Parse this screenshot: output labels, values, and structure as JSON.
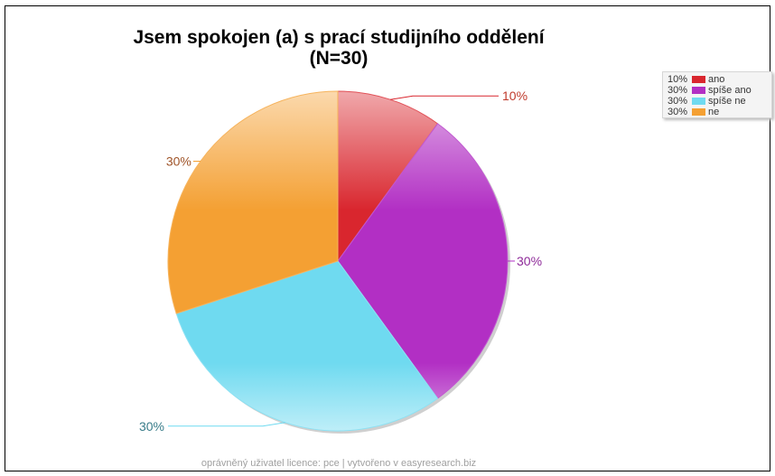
{
  "chart_data": {
    "type": "pie",
    "title_line1": "Jsem spokojen (a) s prací studijního oddělení",
    "title_line2": "(N=30)",
    "legend_position": "top-right",
    "slices": [
      {
        "label": "ano",
        "value": 10,
        "pct_label": "10%",
        "color": "#d9262e",
        "label_color": "#c0392b"
      },
      {
        "label": "spíše ano",
        "value": 30,
        "pct_label": "30%",
        "color": "#b22fc4",
        "label_color": "#8e2a99"
      },
      {
        "label": "spíše ne",
        "value": 30,
        "pct_label": "30%",
        "color": "#6fdaf0",
        "label_color": "#3a7d8a"
      },
      {
        "label": "ne",
        "value": 30,
        "pct_label": "30%",
        "color": "#f4a033",
        "label_color": "#a0552a"
      }
    ]
  },
  "footer": "oprávněný uživatel licence: pce | vytvořeno v easyresearch.biz"
}
